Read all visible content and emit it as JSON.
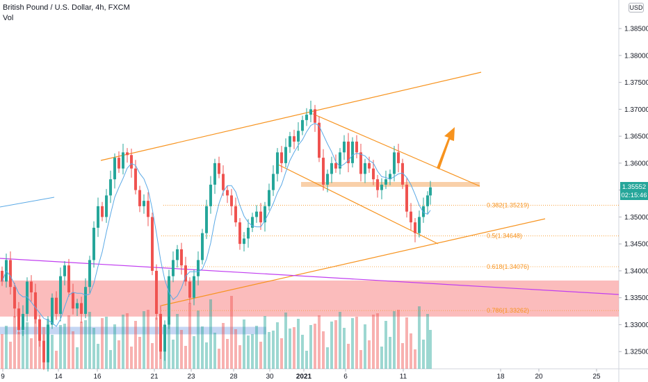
{
  "header": {
    "title": "British Pound / U.S. Dollar, 4h, FXCM",
    "indicator": "Vol",
    "currency_badge": "USD"
  },
  "price_tag": {
    "value": "1.35552",
    "countdown": "02:15:46",
    "color": "#26a69a"
  },
  "colors": {
    "up": "#26a69a",
    "down": "#ef5350",
    "trend": "#f7931e",
    "ma": "#5aa9e6",
    "long_trend": "#c13ef0",
    "zone": "#f9a6a6",
    "blue_zone": "#b6ccf0"
  },
  "chart_data": {
    "type": "candlestick",
    "y_ticks": [
      "1.38500",
      "1.38000",
      "1.37500",
      "1.37000",
      "1.36500",
      "1.36000",
      "1.35500",
      "1.35000",
      "1.34500",
      "1.34000",
      "1.33500",
      "1.33000",
      "1.32500"
    ],
    "y_range": [
      1.3218,
      1.3903
    ],
    "x_ticks": [
      "9",
      "14",
      "16",
      "21",
      "23",
      "28",
      "30",
      "2021",
      "6",
      "11",
      "18",
      "20",
      "25"
    ],
    "fib_levels": [
      {
        "label": "0.382(1.35219)",
        "value": 1.35219
      },
      {
        "label": "0.5(1.34648)",
        "value": 1.34648
      },
      {
        "label": "0.618(1.34076)",
        "value": 1.34076
      },
      {
        "label": "0.786(1.33262)",
        "value": 1.33262
      }
    ],
    "zones": [
      {
        "name": "red-zone",
        "from": 1.3315,
        "to": 1.3382
      },
      {
        "name": "blue-zone",
        "from": 1.3282,
        "to": 1.3296
      },
      {
        "name": "orange-zone",
        "from": 1.3556,
        "to": 1.3565
      }
    ]
  }
}
